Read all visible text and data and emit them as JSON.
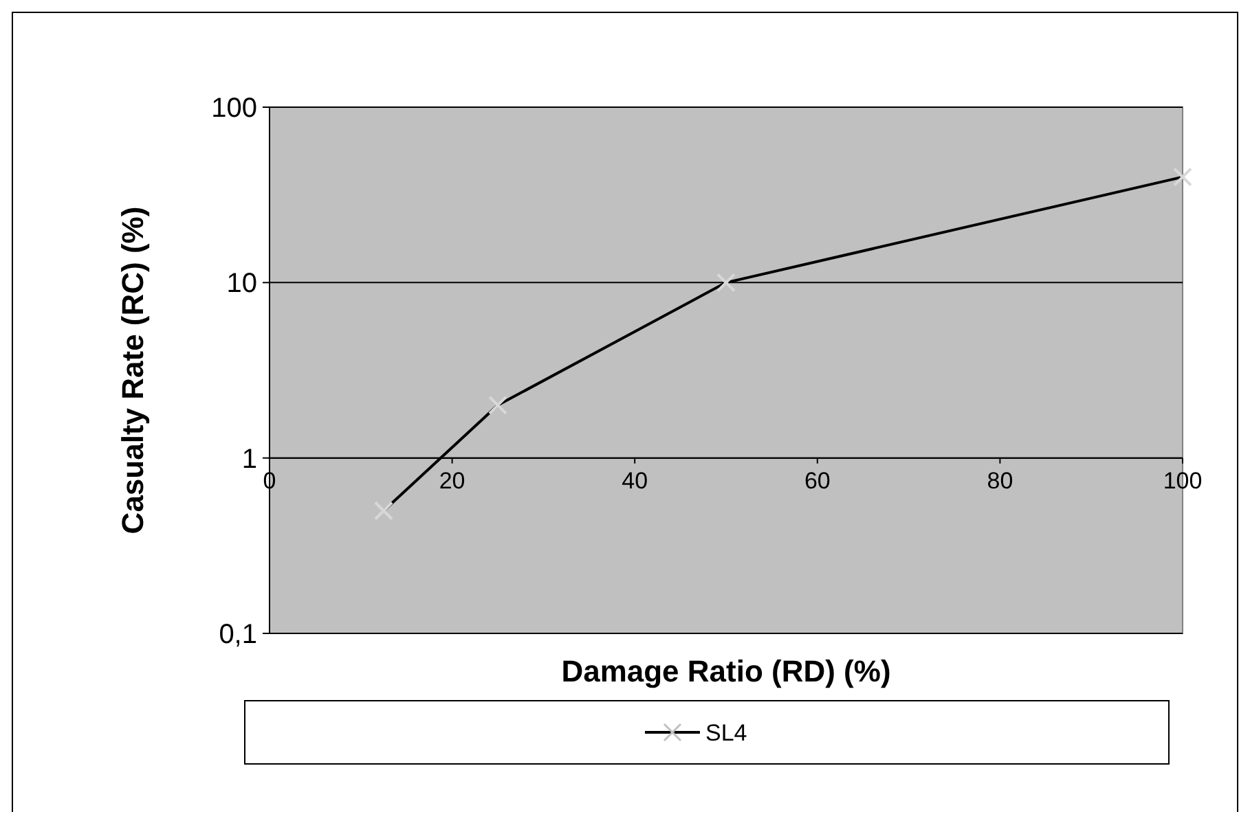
{
  "chart_data": {
    "type": "line",
    "xlabel": "Damage Ratio (RD) (%)",
    "ylabel": "Casualty Rate (RC) (%)",
    "x": [
      12.5,
      25,
      50,
      100
    ],
    "series": [
      {
        "name": "SL4",
        "color": "#000000",
        "values": [
          0.5,
          2,
          10,
          40
        ]
      }
    ],
    "xlim": [
      0,
      100
    ],
    "xticks": [
      0,
      20,
      40,
      60,
      80,
      100
    ],
    "ylim": [
      0.1,
      100
    ],
    "yticks": [
      {
        "value": 0.1,
        "label": "0,1"
      },
      1,
      10,
      100
    ],
    "log": "y",
    "grid": "y",
    "legend": "bottom",
    "marker": "cross",
    "line_style": "solid"
  }
}
